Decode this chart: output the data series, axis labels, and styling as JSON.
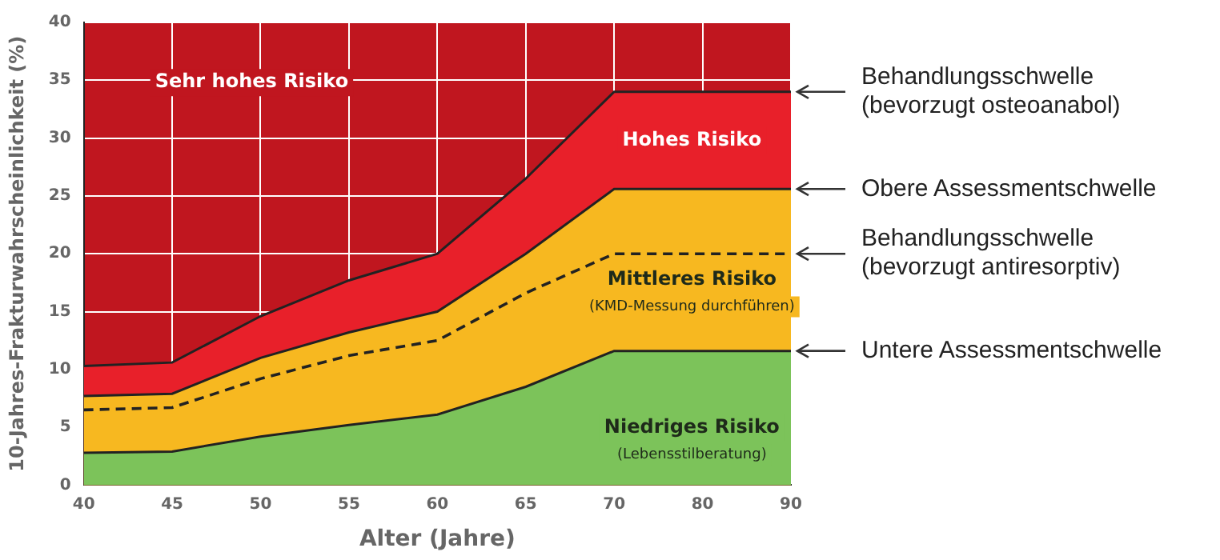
{
  "chart_data": {
    "type": "area",
    "xlabel": "Alter (Jahre)",
    "ylabel": "10-Jahres-Frakturwahrscheinlichkeit (%)",
    "categories": [
      "40",
      "45",
      "50",
      "55",
      "60",
      "65",
      "70",
      "80",
      "90"
    ],
    "series": [
      {
        "color": "#e8202a",
        "values": [
          10.3,
          10.6,
          14.6,
          17.7,
          20.0,
          26.5,
          34.0,
          34.0,
          34.0
        ]
      },
      {
        "color": "#f7b820",
        "values": [
          7.7,
          7.9,
          11.0,
          13.2,
          15.0,
          20.0,
          25.6,
          25.6,
          25.6
        ]
      },
      {
        "type": "line",
        "color": "#222222",
        "line_style": "dashed",
        "values": [
          6.5,
          6.7,
          9.2,
          11.2,
          12.5,
          16.6,
          20.0,
          20.0,
          20.0
        ]
      },
      {
        "color": "#7cc35a",
        "values": [
          2.8,
          2.9,
          4.2,
          5.2,
          6.1,
          8.5,
          11.6,
          11.6,
          11.6
        ]
      }
    ],
    "ylim": [
      0,
      40
    ],
    "yticks": [
      0,
      5,
      10,
      15,
      20,
      25,
      30,
      35,
      40
    ],
    "grid": true,
    "legend": false,
    "bands": [
      {
        "axis": "y",
        "from": 0,
        "to": 40,
        "color": "#c0161f"
      }
    ],
    "annotations": [
      "Sehr hohes Risiko",
      "Hohes Risiko",
      "Mittleres Risiko",
      "(KMD-Messung durchführen)",
      "Niedriges Risiko",
      "(Lebensstilberatung)",
      {
        "text": "Behandlungsschwelle\n(bevorzugt osteoanabol)",
        "x": "90",
        "y": 34
      },
      {
        "text": "Obere Assessmentschwelle",
        "x": "90",
        "y": 25.6
      },
      {
        "text": "Behandlungsschwelle\n(bevorzugt antiresorptiv)",
        "x": "90",
        "y": 20
      },
      {
        "text": "Untere Assessmentschwelle",
        "x": "90",
        "y": 11.6
      }
    ]
  }
}
